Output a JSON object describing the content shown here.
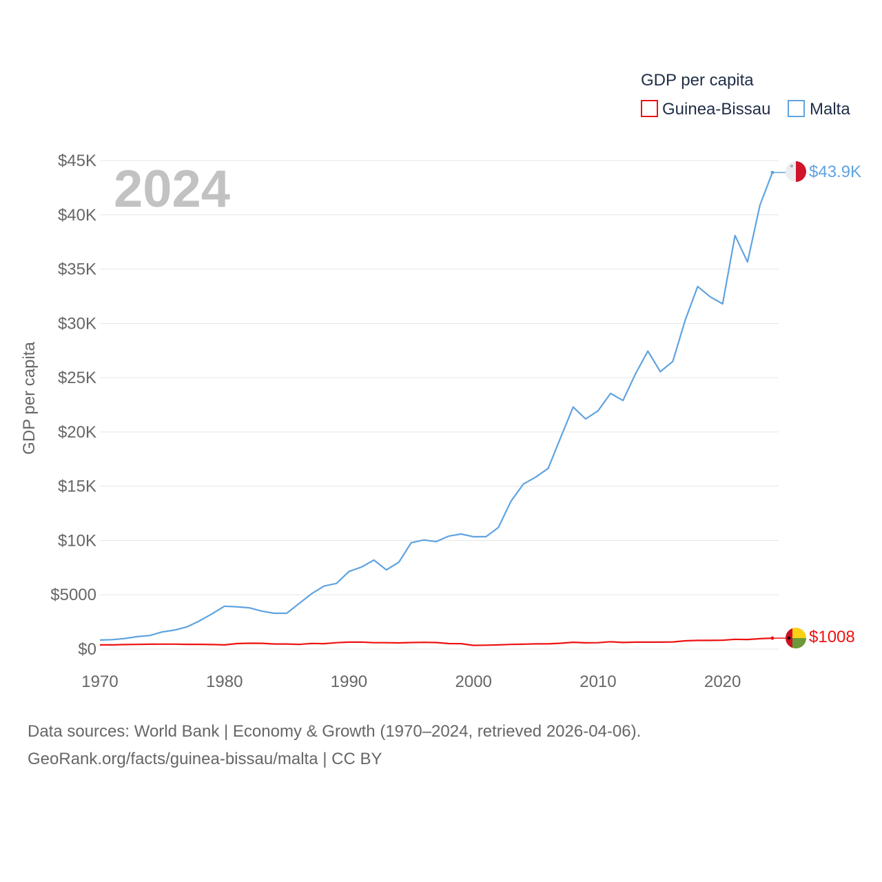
{
  "chart_data": {
    "type": "line",
    "legend_title": "GDP per capita",
    "ylabel": "GDP per capita",
    "year_label": "2024",
    "xlim": [
      1970,
      2024.5
    ],
    "ylim": [
      0,
      45000
    ],
    "x_ticks": [
      1970,
      1980,
      1990,
      2000,
      2010,
      2020
    ],
    "y_ticks": [
      0,
      5000,
      10000,
      15000,
      20000,
      25000,
      30000,
      35000,
      40000,
      45000
    ],
    "y_tick_labels": [
      "$0",
      "$5000",
      "$10K",
      "$15K",
      "$20K",
      "$25K",
      "$30K",
      "$35K",
      "$40K",
      "$45K"
    ],
    "grid": true,
    "legend_position": "top-right",
    "x": [
      1970,
      1971,
      1972,
      1973,
      1974,
      1975,
      1976,
      1977,
      1978,
      1979,
      1980,
      1981,
      1982,
      1983,
      1984,
      1985,
      1986,
      1987,
      1988,
      1989,
      1990,
      1991,
      1992,
      1993,
      1994,
      1995,
      1996,
      1997,
      1998,
      1999,
      2000,
      2001,
      2002,
      2003,
      2004,
      2005,
      2006,
      2007,
      2008,
      2009,
      2010,
      2011,
      2012,
      2013,
      2014,
      2015,
      2016,
      2017,
      2018,
      2019,
      2020,
      2021,
      2022,
      2023,
      2024
    ],
    "series": [
      {
        "name": "Guinea-Bissau",
        "color": "#ee1111",
        "end_label": "$1008",
        "values": [
          390,
          390,
          420,
          430,
          450,
          460,
          460,
          440,
          440,
          420,
          390,
          510,
          540,
          530,
          470,
          470,
          430,
          520,
          500,
          590,
          640,
          650,
          590,
          590,
          570,
          600,
          620,
          600,
          510,
          500,
          340,
          360,
          390,
          430,
          450,
          480,
          480,
          540,
          630,
          580,
          590,
          680,
          610,
          640,
          640,
          640,
          660,
          760,
          800,
          800,
          820,
          900,
          880,
          960,
          1008
        ]
      },
      {
        "name": "Malta",
        "color": "#5fa3e0",
        "end_label": "$43.9K",
        "values": [
          830,
          870,
          980,
          1150,
          1250,
          1580,
          1750,
          2050,
          2600,
          3250,
          3950,
          3900,
          3800,
          3500,
          3300,
          3300,
          4200,
          5100,
          5800,
          6050,
          7150,
          7550,
          8200,
          7300,
          8000,
          9800,
          10050,
          9900,
          10400,
          10600,
          10350,
          10350,
          11200,
          13600,
          15200,
          15850,
          16650,
          19500,
          22300,
          21200,
          21950,
          23550,
          22900,
          25350,
          27450,
          25550,
          26500,
          30300,
          33400,
          32450,
          31800,
          38100,
          35650,
          40900,
          43900
        ]
      }
    ],
    "source_line_1": "Data sources: World Bank | Economy & Growth (1970–2024, retrieved 2026-04-06).",
    "source_line_2": "GeoRank.org/facts/guinea-bissau/malta | CC BY"
  }
}
